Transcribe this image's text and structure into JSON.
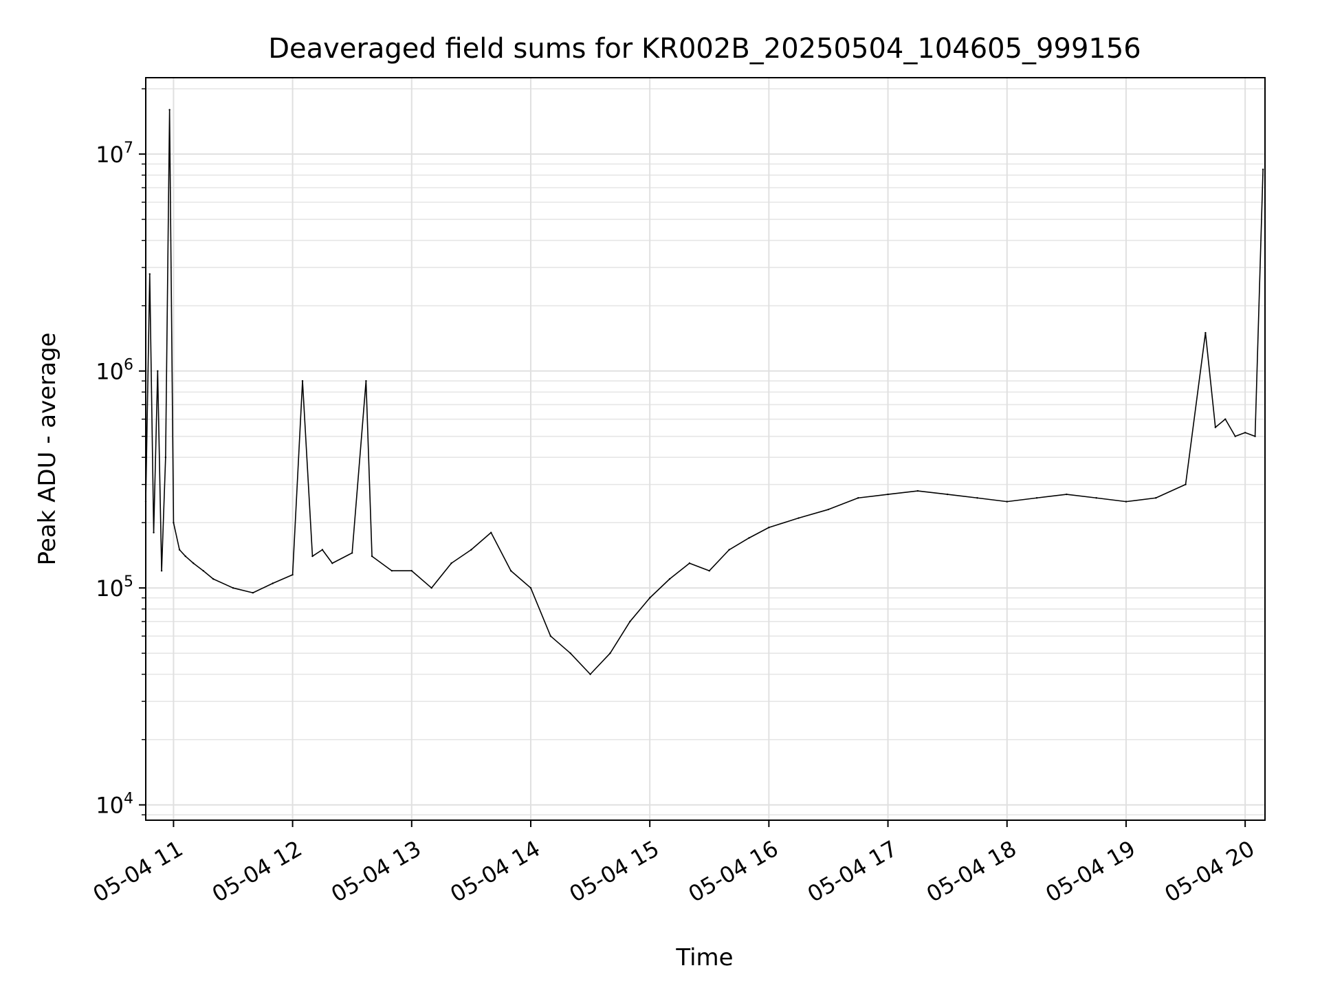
{
  "chart_data": {
    "type": "line",
    "title": "Deaveraged field sums for KR002B_20250504_104605_999156",
    "xlabel": "Time",
    "ylabel": "Peak ADU - average",
    "yscale": "log",
    "ylim": [
      8500,
      22500000
    ],
    "xlim": [
      "05-04 10:46",
      "05-04 20:10"
    ],
    "grid": "on (major and minor)",
    "x_tick_labels": [
      "05-04 11",
      "05-04 12",
      "05-04 13",
      "05-04 14",
      "05-04 15",
      "05-04 16",
      "05-04 17",
      "05-04 18",
      "05-04 19",
      "05-04 20"
    ],
    "y_tick_labels": [
      {
        "base": "10",
        "exp": "4"
      },
      {
        "base": "10",
        "exp": "5"
      },
      {
        "base": "10",
        "exp": "6"
      },
      {
        "base": "10",
        "exp": "7"
      }
    ],
    "series": [
      {
        "color": "#000000",
        "x": [
          "05-04 10:46",
          "05-04 10:48",
          "05-04 10:50",
          "05-04 10:52",
          "05-04 10:54",
          "05-04 10:56",
          "05-04 10:58",
          "05-04 11:00",
          "05-04 11:03",
          "05-04 11:06",
          "05-04 11:10",
          "05-04 11:15",
          "05-04 11:20",
          "05-04 11:30",
          "05-04 11:40",
          "05-04 11:50",
          "05-04 12:00",
          "05-04 12:05",
          "05-04 12:10",
          "05-04 12:15",
          "05-04 12:20",
          "05-04 12:30",
          "05-04 12:37",
          "05-04 12:40",
          "05-04 12:50",
          "05-04 13:00",
          "05-04 13:10",
          "05-04 13:20",
          "05-04 13:30",
          "05-04 13:40",
          "05-04 13:50",
          "05-04 14:00",
          "05-04 14:10",
          "05-04 14:20",
          "05-04 14:30",
          "05-04 14:40",
          "05-04 14:50",
          "05-04 15:00",
          "05-04 15:10",
          "05-04 15:20",
          "05-04 15:30",
          "05-04 15:40",
          "05-04 15:50",
          "05-04 16:00",
          "05-04 16:15",
          "05-04 16:30",
          "05-04 16:45",
          "05-04 17:00",
          "05-04 17:15",
          "05-04 17:30",
          "05-04 17:45",
          "05-04 18:00",
          "05-04 18:15",
          "05-04 18:30",
          "05-04 18:45",
          "05-04 19:00",
          "05-04 19:15",
          "05-04 19:30",
          "05-04 19:40",
          "05-04 19:45",
          "05-04 19:50",
          "05-04 19:55",
          "05-04 20:00",
          "05-04 20:05",
          "05-04 20:09"
        ],
        "y": [
          250000,
          2800000,
          180000,
          1000000,
          120000,
          400000,
          16000000,
          200000,
          150000,
          140000,
          130000,
          120000,
          110000,
          100000,
          95000,
          105000,
          115000,
          900000,
          140000,
          150000,
          130000,
          145000,
          900000,
          140000,
          120000,
          120000,
          100000,
          130000,
          150000,
          180000,
          120000,
          100000,
          60000,
          50000,
          40000,
          50000,
          70000,
          90000,
          110000,
          130000,
          120000,
          150000,
          170000,
          190000,
          210000,
          230000,
          260000,
          270000,
          280000,
          270000,
          260000,
          250000,
          260000,
          270000,
          260000,
          250000,
          260000,
          300000,
          1500000,
          550000,
          600000,
          500000,
          520000,
          500000,
          8500000
        ]
      }
    ]
  }
}
